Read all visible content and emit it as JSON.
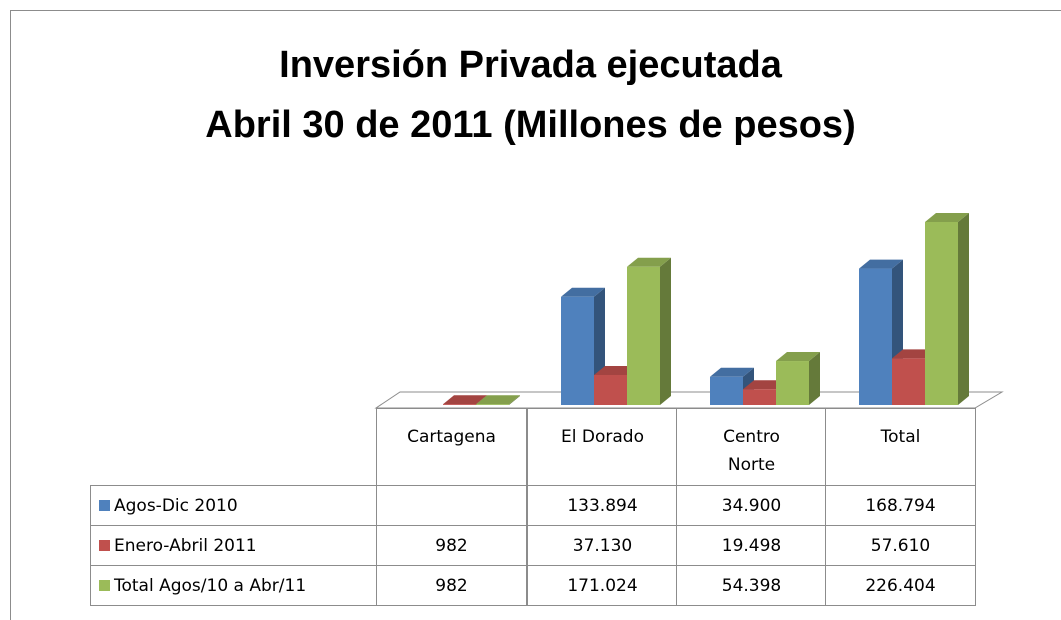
{
  "chart_data": {
    "type": "bar",
    "title": [
      "Inversión Privada ejecutada",
      "Abril 30 de 2011 (Millones de pesos)"
    ],
    "categories": [
      "Cartagena",
      "El Dorado",
      "Centro Norte",
      "Total"
    ],
    "series": [
      {
        "name": "Agos-Dic 2010",
        "color": "#4f81bd",
        "values": [
          null,
          133894,
          34900,
          168794
        ],
        "value_labels": [
          null,
          "133.894",
          "34.900",
          "168.794"
        ]
      },
      {
        "name": "Enero-Abril 2011",
        "color": "#c0504d",
        "values": [
          982,
          37130,
          19498,
          57610
        ],
        "value_labels": [
          "982",
          "37.130",
          "19.498",
          "57.610"
        ]
      },
      {
        "name": "Total Agos/10 a Abr/11",
        "color": "#9bbb59",
        "values": [
          982,
          171024,
          54398,
          226404
        ],
        "value_labels": [
          "982",
          "171.024",
          "54.398",
          "226.404"
        ]
      }
    ]
  }
}
